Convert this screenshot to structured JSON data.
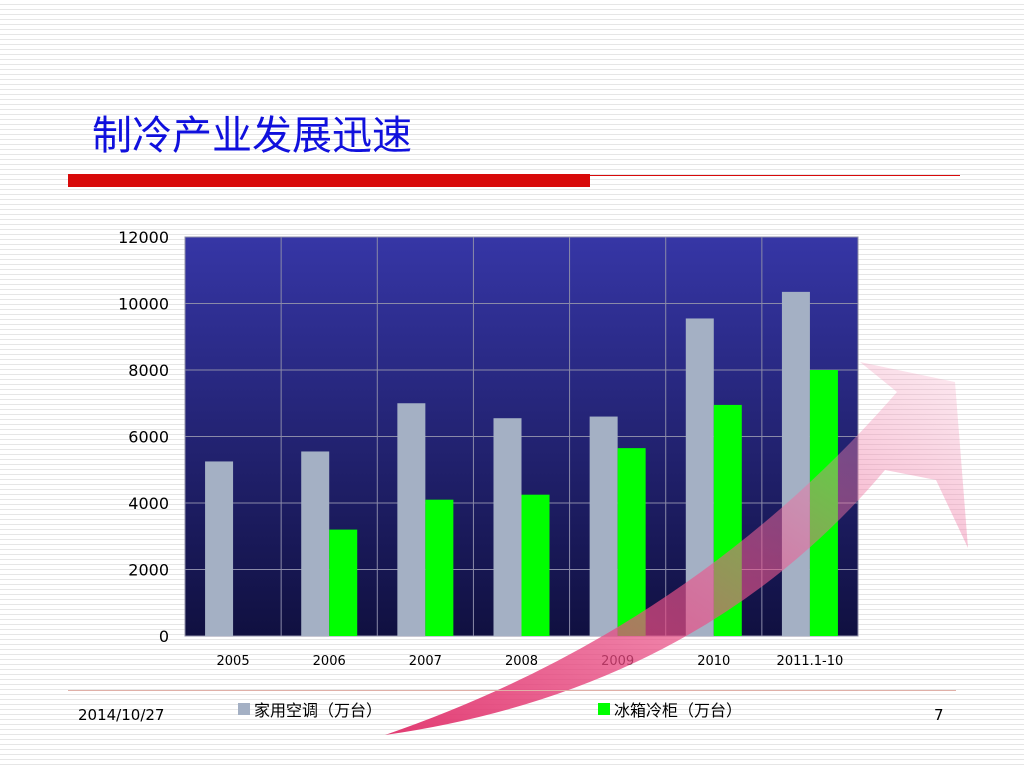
{
  "slide": {
    "title": "制冷产业发展迅速",
    "footer_date": "2014/10/27",
    "page_number": "7"
  },
  "chart_data": {
    "type": "bar",
    "title": "",
    "xlabel": "",
    "ylabel": "",
    "ylim": [
      0,
      12000
    ],
    "yticks": [
      0,
      2000,
      4000,
      6000,
      8000,
      10000,
      12000
    ],
    "ytick_labels": [
      "0",
      "2000",
      "4000",
      "6000",
      "8000",
      "10000",
      "12000"
    ],
    "grid": true,
    "legend_position": "bottom",
    "categories": [
      "2005",
      "2006",
      "2007",
      "2008",
      "2009",
      "2010",
      "2011.1-10"
    ],
    "series": [
      {
        "name": "家用空调（万台）",
        "color": "#a4b0c4",
        "values": [
          5250,
          5550,
          7000,
          6550,
          6600,
          9550,
          10350
        ]
      },
      {
        "name": "冰箱冷柜（万台）",
        "color": "#00ff00",
        "values": [
          null,
          3200,
          4100,
          4250,
          5650,
          6950,
          8000
        ]
      }
    ],
    "colors": {
      "plot_top": "#3636a6",
      "plot_bottom": "#101040",
      "grid": "#8a8aa8",
      "trend_arrow": "#e84880"
    }
  }
}
